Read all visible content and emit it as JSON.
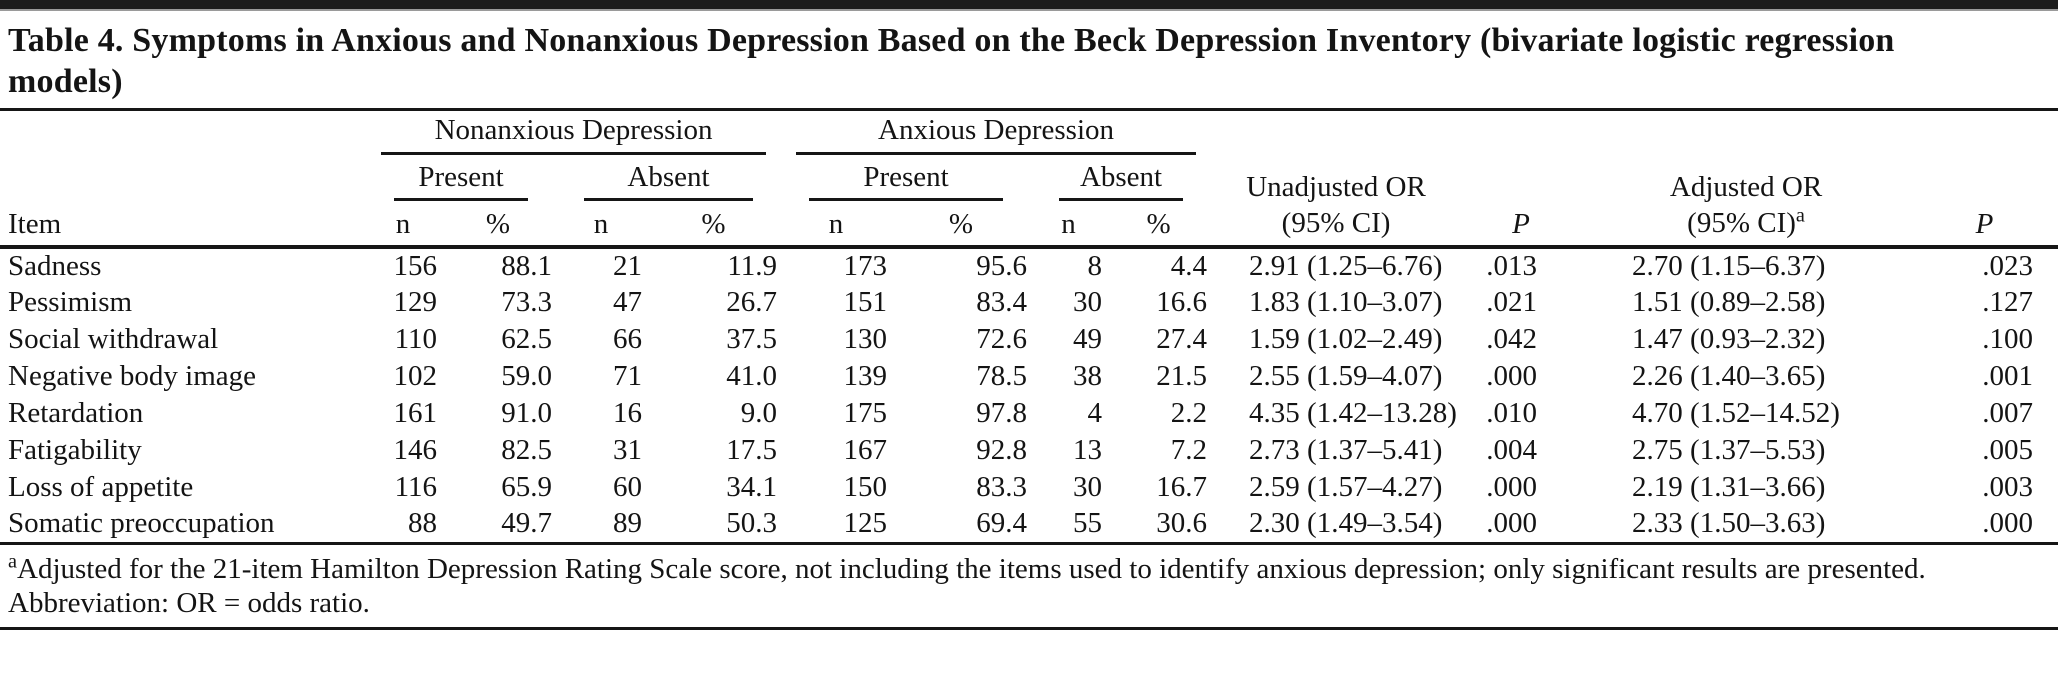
{
  "title": {
    "full": "Table 4. Symptoms in Anxious and Nonanxious Depression Based on the Beck Depression Inventory (bivariate logistic regression models)",
    "line1": "Table 4. Symptoms in Anxious and Nonanxious Depression Based on the Beck Depression Inventory (bivariate logistic regression",
    "line2": "models)"
  },
  "table": {
    "groups": [
      {
        "label": "Nonanxious Depression",
        "subgroups": [
          "Present",
          "Absent"
        ]
      },
      {
        "label": "Anxious Depression",
        "subgroups": [
          "Present",
          "Absent"
        ]
      }
    ],
    "item_header": "Item",
    "n_header": "n",
    "pct_header": "%",
    "or_headers": {
      "unadjusted_line1": "Unadjusted OR",
      "unadjusted_line2": "(95% CI)",
      "p1": "P",
      "adjusted_line1": "Adjusted OR",
      "adjusted_line2": "(95% CI)",
      "adjusted_sup": "a",
      "p2": "P"
    },
    "rows": [
      {
        "item": "Sadness",
        "cells": [
          "156",
          "88.1",
          "21",
          "11.9",
          "173",
          "95.6",
          "8",
          "4.4",
          "2.91 (1.25–6.76)",
          ".013",
          "2.70 (1.15–6.37)",
          ".023"
        ]
      },
      {
        "item": "Pessimism",
        "cells": [
          "129",
          "73.3",
          "47",
          "26.7",
          "151",
          "83.4",
          "30",
          "16.6",
          "1.83 (1.10–3.07)",
          ".021",
          "1.51 (0.89–2.58)",
          ".127"
        ]
      },
      {
        "item": "Social withdrawal",
        "cells": [
          "110",
          "62.5",
          "66",
          "37.5",
          "130",
          "72.6",
          "49",
          "27.4",
          "1.59 (1.02–2.49)",
          ".042",
          "1.47 (0.93–2.32)",
          ".100"
        ]
      },
      {
        "item": "Negative body image",
        "cells": [
          "102",
          "59.0",
          "71",
          "41.0",
          "139",
          "78.5",
          "38",
          "21.5",
          "2.55 (1.59–4.07)",
          ".000",
          "2.26 (1.40–3.65)",
          ".001"
        ]
      },
      {
        "item": "Retardation",
        "cells": [
          "161",
          "91.0",
          "16",
          "9.0",
          "175",
          "97.8",
          "4",
          "2.2",
          "4.35 (1.42–13.28)",
          ".010",
          "4.70 (1.52–14.52)",
          ".007"
        ]
      },
      {
        "item": "Fatigability",
        "cells": [
          "146",
          "82.5",
          "31",
          "17.5",
          "167",
          "92.8",
          "13",
          "7.2",
          "2.73 (1.37–5.41)",
          ".004",
          "2.75 (1.37–5.53)",
          ".005"
        ]
      },
      {
        "item": "Loss of appetite",
        "cells": [
          "116",
          "65.9",
          "60",
          "34.1",
          "150",
          "83.3",
          "30",
          "16.7",
          "2.59 (1.57–4.27)",
          ".000",
          "2.19 (1.31–3.66)",
          ".003"
        ]
      },
      {
        "item": "Somatic preoccupation",
        "cells": [
          "88",
          "49.7",
          "89",
          "50.3",
          "125",
          "69.4",
          "55",
          "30.6",
          "2.30 (1.49–3.54)",
          ".000",
          "2.33 (1.50–3.63)",
          ".000"
        ]
      }
    ]
  },
  "footnotes": {
    "a_marker": "a",
    "a_text": "Adjusted for the 21-item Hamilton Depression Rating Scale score, not including the items used to identify anxious depression; only significant results are presented.",
    "abbreviation": "Abbreviation: OR = odds ratio."
  },
  "colors": {
    "rule": "#161616",
    "text": "#141414",
    "background": "#ffffff"
  }
}
